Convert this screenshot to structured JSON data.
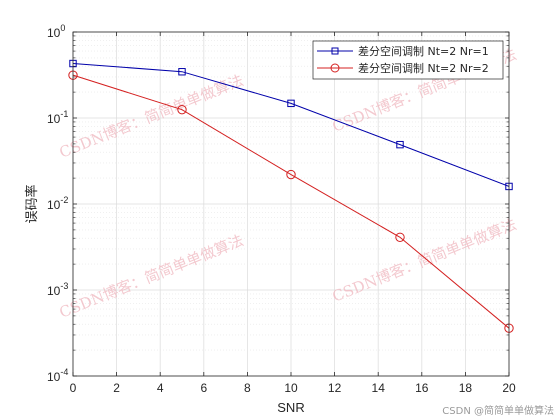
{
  "chart_data": {
    "type": "line",
    "title": "",
    "xlabel": "SNR",
    "ylabel": "误码率",
    "x": [
      0,
      5,
      10,
      15,
      20
    ],
    "xlim": [
      0,
      20
    ],
    "ylim": [
      0.0001,
      1
    ],
    "yscale": "log",
    "grid": true,
    "minor_grid": true,
    "x_ticks": [
      "0",
      "2",
      "4",
      "6",
      "8",
      "10",
      "12",
      "14",
      "16",
      "18",
      "20"
    ],
    "y_ticks": [
      {
        "base": "10",
        "exp": "-4"
      },
      {
        "base": "10",
        "exp": "-3"
      },
      {
        "base": "10",
        "exp": "-2"
      },
      {
        "base": "10",
        "exp": "-1"
      },
      {
        "base": "10",
        "exp": "0"
      }
    ],
    "legend_position": "top-right",
    "series": [
      {
        "name": "差分空间调制 Nt=2 Nr=1",
        "color": "#0000aa",
        "marker": "square",
        "values": [
          0.43,
          0.345,
          0.148,
          0.049,
          0.016
        ]
      },
      {
        "name": "差分空间调制 Nt=2 Nr=2",
        "color": "#d42020",
        "marker": "circle",
        "values": [
          0.315,
          0.125,
          0.022,
          0.0041,
          0.00036
        ]
      }
    ]
  },
  "watermarks": [
    "CSDN博客：简简单单做算法",
    "CSDN博客：简简单单做算法",
    "CSDN博客：简简单单做算法",
    "CSDN博客：简简单单做算法"
  ],
  "footer_watermark": "CSDN @简简单单做算法"
}
